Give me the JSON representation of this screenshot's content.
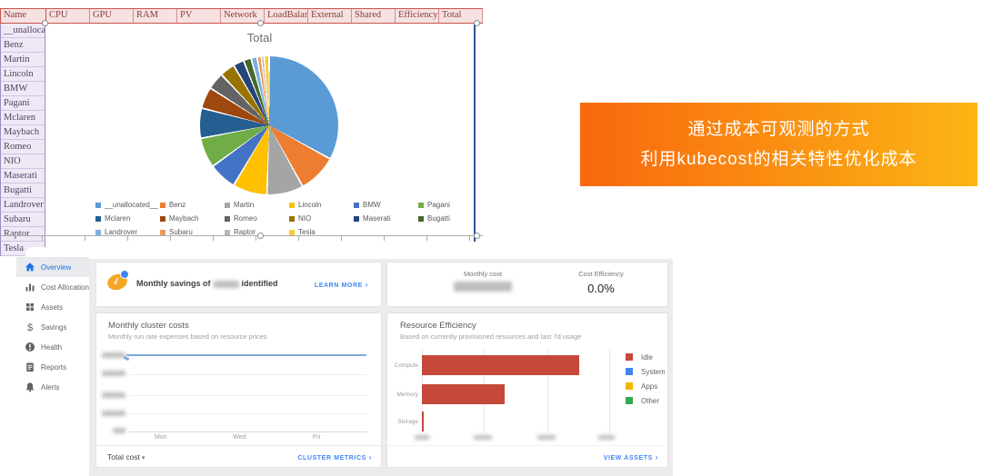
{
  "table": {
    "name_header": "Name",
    "columns": [
      "CPU",
      "GPU",
      "RAM",
      "PV",
      "Network",
      "LoadBalar",
      "External",
      "Shared",
      "Efficiency",
      "Total"
    ],
    "rows": [
      "__unallocated__",
      "Benz",
      "Martin",
      "Lincoln",
      "BMW",
      "Pagani",
      "Mclaren",
      "Maybach",
      "Romeo",
      "NIO",
      "Maserati",
      "Bugatti",
      "Landrover",
      "Subaru",
      "Raptor",
      "Tesla"
    ]
  },
  "chart_data": [
    {
      "type": "pie",
      "title": "Total",
      "labels": [
        "__unallocated__",
        "Benz",
        "Martin",
        "Lincoln",
        "BMW",
        "Pagani",
        "Mclaren",
        "Maybach",
        "Romeo",
        "NIO",
        "Maserati",
        "Bugatti",
        "Landrover",
        "Subaru",
        "Raptor",
        "Tesla"
      ],
      "values": [
        33,
        9,
        8.5,
        8,
        6.5,
        7,
        7,
        5,
        4,
        3.5,
        2.5,
        1.8,
        1.4,
        1.0,
        0.6,
        1.2
      ],
      "unit": "percent",
      "colors": [
        "#5b9bd5",
        "#ed7d31",
        "#a5a5a5",
        "#ffc000",
        "#4472c4",
        "#70ad47",
        "#255e91",
        "#9e480e",
        "#636363",
        "#997300",
        "#264478",
        "#43682b",
        "#7cafdd",
        "#f1975a",
        "#b7b7b7",
        "#ffcd33"
      ],
      "legend_position": "bottom"
    },
    {
      "type": "line",
      "title": "Monthly cluster costs",
      "subtitle": "Monthly run rate expenses based on resource prices",
      "x_ticks": [
        "Mon",
        "Wed",
        "Fri"
      ],
      "y_tick_labels": "redacted (blurred in source)",
      "series": [
        {
          "name": "Total cost",
          "color": "#7fa8d9",
          "shape": "flat line near top of axis"
        }
      ],
      "grid": true
    },
    {
      "type": "bar",
      "title": "Resource Efficiency",
      "subtitle": "Based on currently provisioned resources and last 7d usage",
      "categories": [
        "Compute",
        "Memory",
        "Storage"
      ],
      "values": [
        84,
        44,
        1
      ],
      "unit": "percent of x-axis (tick labels blurred in source)",
      "bar_color": "#c5483a",
      "orientation": "horizontal",
      "legend": [
        {
          "label": "Idle",
          "color": "#c5483a"
        },
        {
          "label": "System",
          "color": "#4285f4"
        },
        {
          "label": "Apps",
          "color": "#f4b400"
        },
        {
          "label": "Other",
          "color": "#34a853"
        }
      ]
    }
  ],
  "banner": {
    "lines": [
      "通过成本可观测的方式",
      "利用kubecost的相关特性优化成本"
    ],
    "gradient_left": "#f8680e",
    "gradient_right": "#fcb515",
    "text_color": "#ffffff"
  },
  "dashboard": {
    "sidebar": {
      "items": [
        {
          "label": "Overview",
          "icon": "home-icon",
          "active": true
        },
        {
          "label": "Cost Allocation",
          "icon": "bar-chart-icon",
          "active": false
        },
        {
          "label": "Assets",
          "icon": "grid-icon",
          "active": false
        },
        {
          "label": "Savings",
          "icon": "dollar-icon",
          "active": false
        },
        {
          "label": "Health",
          "icon": "health-icon",
          "active": false
        },
        {
          "label": "Reports",
          "icon": "report-icon",
          "active": false
        },
        {
          "label": "Alerts",
          "icon": "bell-icon",
          "active": false
        }
      ]
    },
    "savings_banner": {
      "prefix": "Monthly savings of",
      "suffix": "identified",
      "value_redacted": true,
      "link_label": "LEARN MORE"
    },
    "cost_summary": {
      "monthly_cost_label": "Monthly cost",
      "monthly_cost_value_redacted": true,
      "cost_efficiency_label": "Cost Efficiency",
      "cost_efficiency_value": "0.0%"
    },
    "cluster_costs_footer": {
      "dropdown_label": "Total cost",
      "link_label": "CLUSTER METRICS"
    },
    "resource_efficiency_footer": {
      "link_label": "VIEW ASSETS"
    }
  }
}
